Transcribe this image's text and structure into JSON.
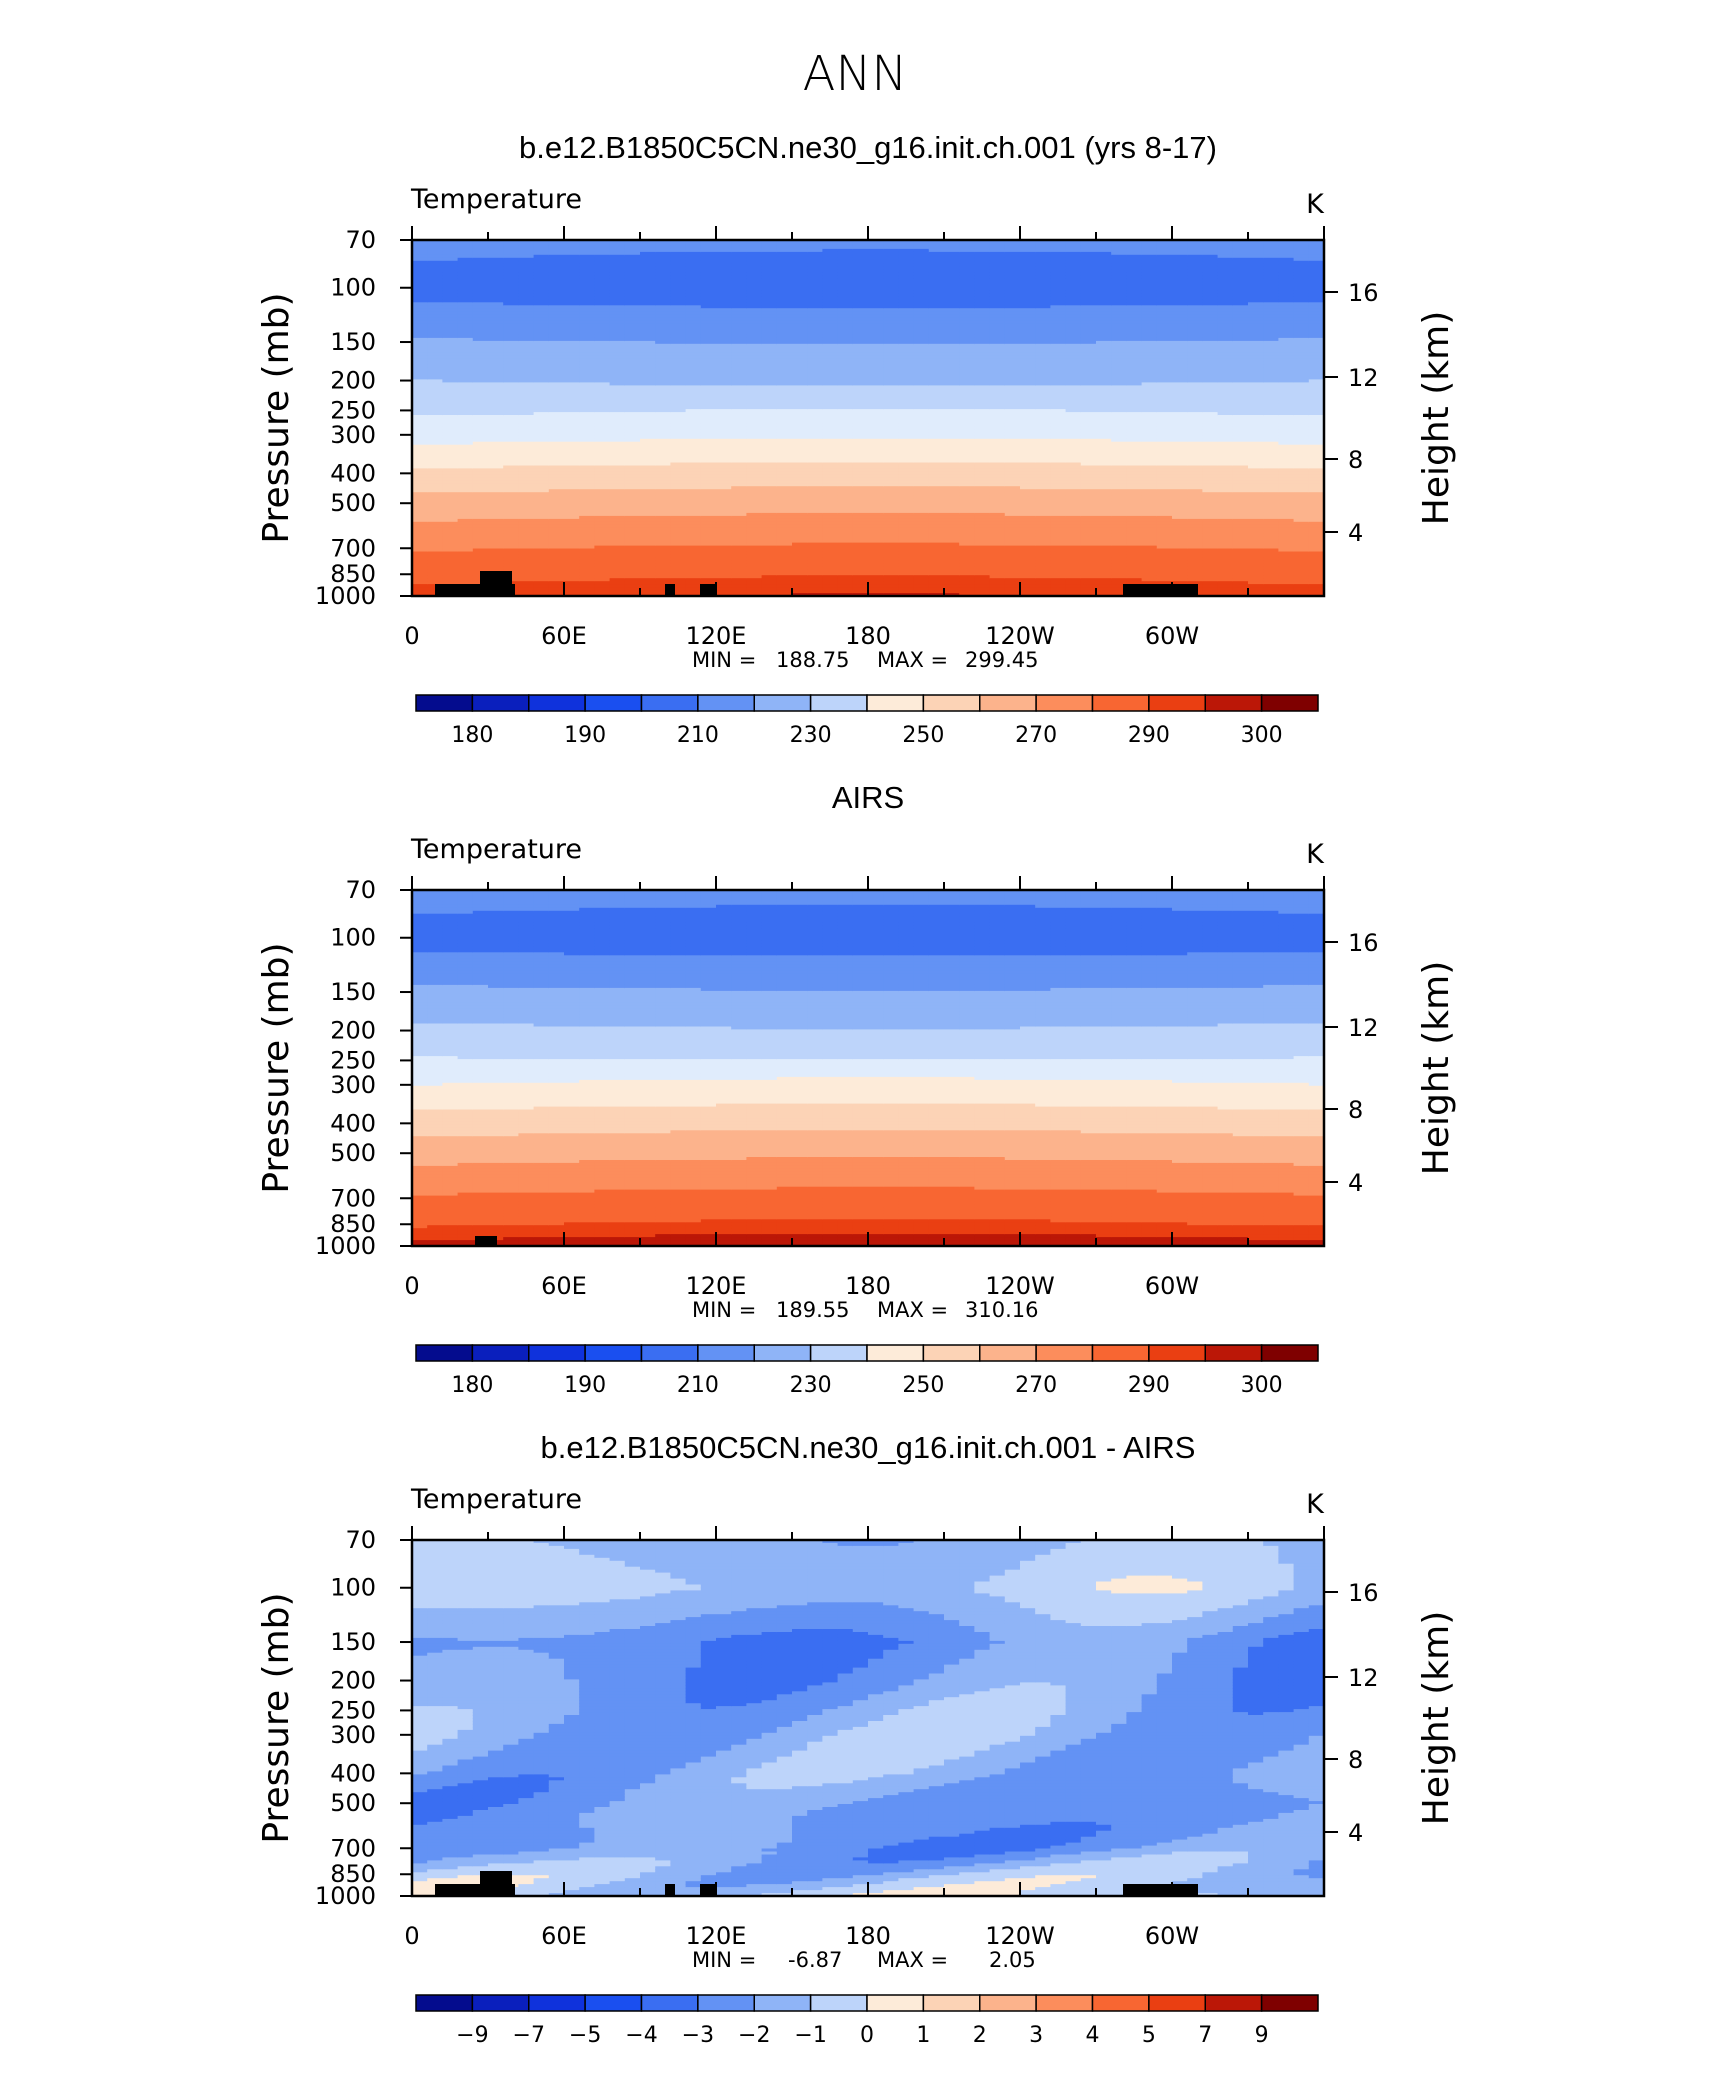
{
  "figure": {
    "title": "ANN"
  },
  "palette": {
    "cold": "#00008f",
    "warm": "#7f0000",
    "mid": "#ffffff"
  },
  "chart_data": [
    {
      "type": "heatmap",
      "title": "b.e12.B1850C5CN.ne30_g16.init.ch.001 (yrs 8-17)",
      "subtitle_left": "Temperature",
      "subtitle_right": "K",
      "ylabel": "Pressure (mb)",
      "ylabel_right": "Height (km)",
      "y_ticks": [
        "70",
        "100",
        "150",
        "200",
        "250",
        "300",
        "400",
        "500",
        "700",
        "850",
        "1000"
      ],
      "y_right_ticks": [
        "16",
        "12",
        "8",
        "4"
      ],
      "x_ticks": [
        "0",
        "60E",
        "120E",
        "180",
        "120W",
        "60W"
      ],
      "stats": {
        "min_label": "MIN",
        "min": "188.75",
        "max_label": "MAX",
        "max": "299.45"
      },
      "colorbar": {
        "levels": [
          175,
          180,
          185,
          190,
          200,
          210,
          220,
          230,
          240,
          250,
          260,
          270,
          280,
          290,
          295,
          300,
          305
        ],
        "labels": [
          "180",
          "190",
          "210",
          "230",
          "250",
          "270",
          "290",
          "300"
        ],
        "label_positions": [
          1,
          3,
          5,
          7,
          9,
          11,
          13,
          15
        ]
      },
      "profile": {
        "p_levels": [
          70,
          100,
          150,
          200,
          250,
          300,
          400,
          500,
          700,
          850,
          1000
        ],
        "t_values": [
          203,
          196,
          211,
          220,
          228,
          236,
          252,
          264,
          279,
          287,
          293
        ]
      }
    },
    {
      "type": "heatmap",
      "title": "AIRS",
      "subtitle_left": "Temperature",
      "subtitle_right": "K",
      "ylabel": "Pressure (mb)",
      "ylabel_right": "Height (km)",
      "y_ticks": [
        "70",
        "100",
        "150",
        "200",
        "250",
        "300",
        "400",
        "500",
        "700",
        "850",
        "1000"
      ],
      "y_right_ticks": [
        "16",
        "12",
        "8",
        "4"
      ],
      "x_ticks": [
        "0",
        "60E",
        "120E",
        "180",
        "120W",
        "60W"
      ],
      "stats": {
        "min_label": "MIN",
        "min": "189.55",
        "max_label": "MAX",
        "max": "310.16"
      },
      "colorbar": {
        "levels": [
          175,
          180,
          185,
          190,
          200,
          210,
          220,
          230,
          240,
          250,
          260,
          270,
          280,
          290,
          295,
          300,
          305
        ],
        "labels": [
          "180",
          "190",
          "210",
          "230",
          "250",
          "270",
          "290",
          "300"
        ],
        "label_positions": [
          1,
          3,
          5,
          7,
          9,
          11,
          13,
          15
        ]
      },
      "profile": {
        "p_levels": [
          70,
          100,
          150,
          200,
          250,
          300,
          400,
          500,
          700,
          850,
          1000
        ],
        "t_values": [
          204,
          196,
          212,
          222,
          231,
          240,
          255,
          266,
          281,
          289,
          297
        ]
      }
    },
    {
      "type": "heatmap",
      "title": "b.e12.B1850C5CN.ne30_g16.init.ch.001 - AIRS",
      "subtitle_left": "Temperature",
      "subtitle_right": "K",
      "ylabel": "Pressure (mb)",
      "ylabel_right": "Height (km)",
      "y_ticks": [
        "70",
        "100",
        "150",
        "200",
        "250",
        "300",
        "400",
        "500",
        "700",
        "850",
        "1000"
      ],
      "y_right_ticks": [
        "16",
        "12",
        "8",
        "4"
      ],
      "x_ticks": [
        "0",
        "60E",
        "120E",
        "180",
        "120W",
        "60W"
      ],
      "stats": {
        "min_label": "MIN =",
        "min": "-6.87",
        "max_label": "MAX =",
        "max": "2.05"
      },
      "colorbar": {
        "levels": [
          -9,
          -7,
          -5,
          -4,
          -3,
          -2,
          -1,
          0,
          1,
          2,
          3,
          4,
          5,
          7,
          9
        ],
        "labels": [
          "−9",
          "−7",
          "−5",
          "−4",
          "−3",
          "−2",
          "−1",
          "0",
          "1",
          "2",
          "3",
          "4",
          "5",
          "7",
          "9"
        ],
        "label_positions": [
          1,
          2,
          3,
          4,
          5,
          6,
          7,
          8,
          9,
          10,
          11,
          12,
          13,
          14,
          15
        ]
      },
      "profile": {
        "p_levels": [
          70,
          100,
          150,
          200,
          250,
          300,
          400,
          500,
          700,
          850,
          1000
        ],
        "t_values": [
          -1.5,
          -0.8,
          -2.6,
          -2.3,
          -1.8,
          -1.6,
          -1.7,
          -2.3,
          -2.4,
          -1.2,
          -0.5
        ]
      }
    }
  ]
}
